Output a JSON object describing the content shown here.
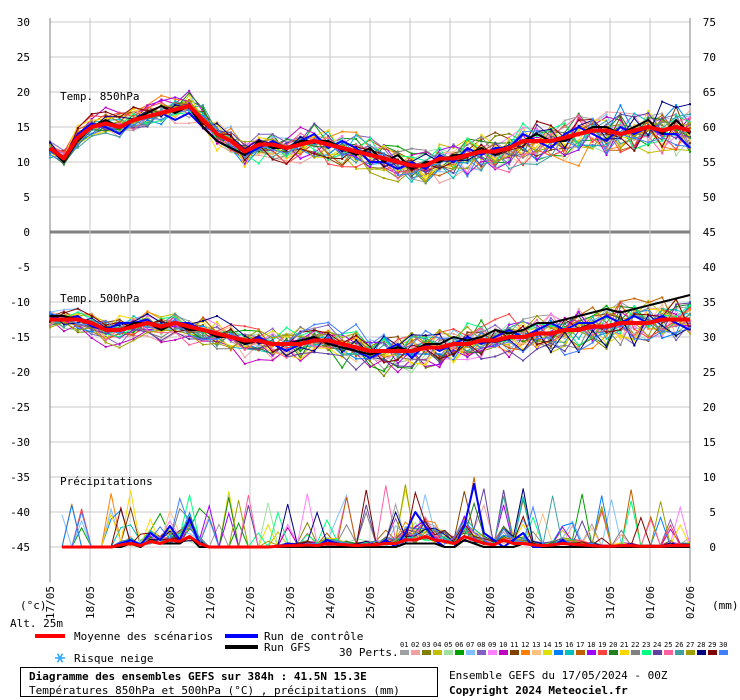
{
  "chart_data": {
    "type": "line",
    "title": "Diagramme des ensembles GEFS sur 384h : 41.5N 15.3E",
    "subtitle": "Températures 850hPa et 500hPa (°C) , précipitations (mm)",
    "left_axis": {
      "unit": "(°c)",
      "ticks": [
        30,
        25,
        20,
        15,
        10,
        5,
        0,
        -5,
        -10,
        -15,
        -20,
        -25,
        -30,
        -35,
        -40,
        -45
      ]
    },
    "right_axis_upper": {
      "ticks": [
        75,
        70,
        65,
        60,
        55,
        50,
        45
      ]
    },
    "right_axis_lower": {
      "unit": "(mm)",
      "ticks": [
        40,
        35,
        30,
        25,
        20,
        15,
        10,
        5,
        0
      ]
    },
    "x_categories": [
      "17/05",
      "18/05",
      "19/05",
      "20/05",
      "21/05",
      "22/05",
      "23/05",
      "24/05",
      "25/05",
      "26/05",
      "27/05",
      "28/05",
      "29/05",
      "30/05",
      "31/05",
      "01/06",
      "02/06"
    ],
    "altitude_label": "Alt. 25m",
    "panel_labels": {
      "t850": "Temp. 850hPa",
      "t500": "Temp. 500hPa",
      "precip": "Précipitations"
    },
    "t850_mean": [
      12,
      10.5,
      13.5,
      15,
      15.5,
      15,
      16,
      16.5,
      17,
      17.5,
      18,
      16,
      14,
      13,
      11.5,
      12.5,
      12.5,
      12,
      12.5,
      13,
      12.5,
      12,
      11.5,
      11,
      10.5,
      10,
      9.5,
      9.5,
      10.5,
      10.5,
      11,
      11.5,
      11.5,
      12,
      13,
      13,
      13,
      13.5,
      14,
      14.5,
      14.5,
      14,
      14.5,
      15,
      14.5,
      15,
      14.5
    ],
    "t850_control": [
      12,
      10,
      14,
      15.5,
      15,
      14,
      16,
      16.5,
      17,
      16,
      17,
      15,
      13,
      12,
      11,
      12,
      13,
      12,
      13,
      14,
      12,
      13,
      12,
      10,
      10,
      9,
      10,
      9,
      11,
      10,
      12,
      11,
      12,
      12,
      14,
      13,
      12,
      14,
      15,
      14,
      13,
      15,
      14,
      15,
      14,
      14,
      12
    ],
    "t850_gfs": [
      12,
      10,
      13,
      15,
      16,
      15,
      16,
      17,
      18,
      17,
      18,
      15,
      13,
      12,
      11,
      13,
      12,
      12,
      13,
      13,
      13,
      12,
      11,
      12,
      10,
      11,
      9,
      10,
      10,
      11,
      11,
      12,
      11,
      12,
      13,
      14,
      13,
      13,
      14,
      15,
      15,
      14,
      15,
      16,
      14,
      16,
      14
    ],
    "t500_mean": [
      -12.5,
      -12.5,
      -12.5,
      -13,
      -14,
      -14,
      -13.5,
      -13,
      -13.5,
      -13,
      -13.5,
      -14,
      -14.5,
      -15,
      -15.5,
      -15.5,
      -16,
      -16,
      -16,
      -15.5,
      -15.5,
      -16,
      -16.5,
      -17,
      -17,
      -17,
      -17,
      -16.5,
      -16.5,
      -16,
      -16,
      -15.5,
      -15.5,
      -15,
      -15,
      -14.5,
      -14.5,
      -14,
      -14,
      -13.5,
      -13.5,
      -13,
      -13,
      -13,
      -12.5,
      -12.5,
      -12.5
    ],
    "t500_control": [
      -12,
      -12.5,
      -12,
      -13.5,
      -14,
      -13,
      -13,
      -12.5,
      -14,
      -13,
      -13,
      -14,
      -15,
      -15,
      -16,
      -15,
      -16,
      -17,
      -16,
      -15,
      -16,
      -16,
      -17,
      -18,
      -17,
      -16,
      -18,
      -16,
      -17,
      -16,
      -15,
      -16,
      -15,
      -14,
      -15,
      -14,
      -13,
      -14,
      -13,
      -13,
      -12,
      -13,
      -12,
      -13,
      -12,
      -13,
      -14
    ],
    "t500_gfs": [
      -12,
      -12,
      -12.5,
      -13,
      -14,
      -14,
      -13,
      -13,
      -14,
      -13,
      -14,
      -14,
      -15,
      -15,
      -16,
      -15.5,
      -16,
      -16,
      -15.5,
      -15,
      -16,
      -16.5,
      -17,
      -17.5,
      -17,
      -16.5,
      -17,
      -16,
      -16,
      -15,
      -15.5,
      -15,
      -14,
      -14.5,
      -14,
      -13,
      -13,
      -12.5,
      -12,
      -11.5,
      -11,
      -11.5,
      -11,
      -10.5,
      -10,
      -9.5,
      -9
    ],
    "precip_mean": [
      0,
      0,
      0,
      0,
      0,
      0,
      0.3,
      0.5,
      0.2,
      0.8,
      0.5,
      1,
      0.8,
      1.5,
      0.5,
      0,
      0,
      0,
      0,
      0,
      0,
      0,
      0.1,
      0.2,
      0.2,
      0.3,
      0.2,
      0.5,
      0.4,
      0.3,
      0.2,
      0.3,
      0.3,
      0.5,
      0.5,
      1,
      1,
      1.5,
      1,
      0.8,
      0.5,
      1.5,
      1,
      0.5,
      0.3,
      1,
      0.5,
      0.5,
      0.3,
      0.2,
      0.3,
      0.5,
      0.4,
      0.3,
      0.2,
      0.1,
      0.1,
      0.2,
      0.2,
      0.1,
      0.1,
      0.1,
      0.2,
      0.2,
      0.2
    ],
    "precip_control": [
      0,
      0,
      0,
      0,
      0,
      0,
      0.5,
      1,
      0.3,
      2,
      1,
      3,
      1,
      4,
      0.5,
      0,
      0,
      0,
      0,
      0,
      0,
      0,
      0,
      0.5,
      0.3,
      0,
      0,
      1,
      0.5,
      0,
      0,
      0,
      0,
      1,
      0,
      2,
      5,
      3,
      1,
      0,
      0,
      3,
      9,
      2,
      1,
      0,
      1,
      2,
      0,
      0,
      0,
      1,
      0,
      0,
      0,
      0,
      0,
      0,
      0,
      0,
      0,
      0,
      0,
      0,
      0
    ],
    "precip_gfs": [
      0,
      0,
      0,
      0,
      0,
      0,
      0,
      0.5,
      0,
      1,
      0.5,
      0.5,
      0.5,
      1.5,
      0,
      0,
      0,
      0,
      0,
      0,
      0,
      0,
      0,
      0,
      0,
      0,
      0,
      0,
      0,
      0,
      0,
      0,
      0,
      0,
      0,
      0.5,
      0.5,
      0.5,
      0.5,
      0,
      0,
      1,
      0.5,
      0,
      0,
      0,
      0,
      0.5,
      0.5,
      0,
      0,
      0,
      0,
      0,
      0,
      0,
      0,
      0,
      0,
      0,
      0,
      0,
      0,
      0,
      0
    ],
    "legend": {
      "mean": "Moyenne des scénarios",
      "control": "Run de contrôle",
      "gfs": "Run GFS",
      "snow": "Risque neige",
      "perts": "30 Perts.",
      "pert_numbers": [
        "01",
        "02",
        "03",
        "04",
        "05",
        "06",
        "07",
        "08",
        "09",
        "10",
        "11",
        "12",
        "13",
        "14",
        "15",
        "16",
        "17",
        "18",
        "19",
        "20",
        "21",
        "22",
        "23",
        "24",
        "25",
        "26",
        "27",
        "28",
        "29",
        "30"
      ]
    },
    "colors": {
      "mean": "#ff0000",
      "control": "#0000ff",
      "gfs": "#000000",
      "grid": "#c0c0c0",
      "snow": "#33aaff",
      "members": [
        "#a0a0a0",
        "#f0a0a0",
        "#808000",
        "#c0c000",
        "#a0e0a0",
        "#00a000",
        "#80c0ff",
        "#8060c0",
        "#ff80ff",
        "#c000c0",
        "#804000",
        "#ff8000",
        "#ffc080",
        "#e0e000",
        "#0080ff",
        "#00c0c0",
        "#c06000",
        "#a000ff",
        "#ff4040",
        "#208020",
        "#ffd700",
        "#808080",
        "#00ff80",
        "#6040a0",
        "#ff60a0",
        "#40a0a0",
        "#a0a000",
        "#000080",
        "#800000",
        "#4080ff"
      ]
    }
  },
  "footer": {
    "run": "Ensemble GEFS du 17/05/2024 - 00Z",
    "copyright": "Copyright 2024 Meteociel.fr"
  }
}
